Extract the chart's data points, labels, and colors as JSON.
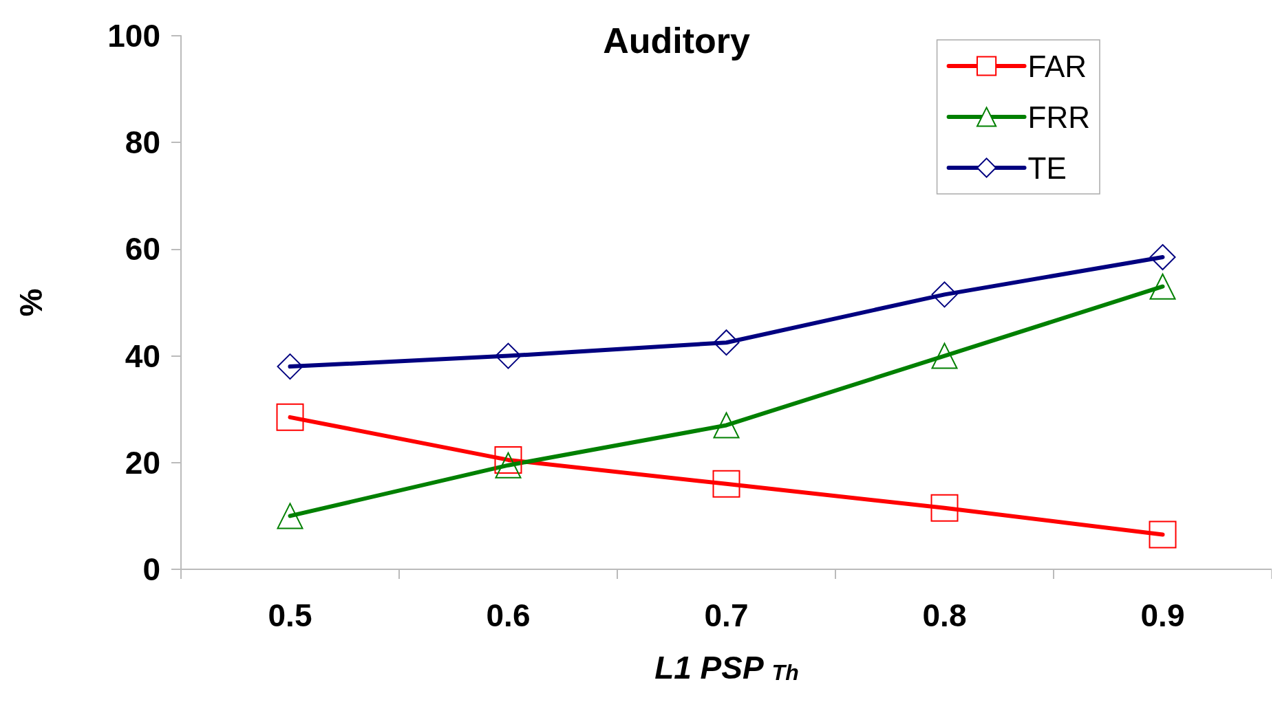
{
  "chart_data": {
    "type": "line",
    "title": "Auditory",
    "xlabel": "L1 PSP $_{Th}$",
    "ylabel": "%",
    "categories": [
      "0.5",
      "0.6",
      "0.7",
      "0.8",
      "0.9"
    ],
    "series": [
      {
        "name": "FAR",
        "color": "#ff0000",
        "marker": "square",
        "values": [
          28.5,
          20.5,
          16,
          11.5,
          6.5
        ]
      },
      {
        "name": "FRR",
        "color": "#008000",
        "marker": "triangle",
        "values": [
          10,
          19.5,
          27,
          40,
          53
        ]
      },
      {
        "name": "TE",
        "color": "#000080",
        "marker": "diamond",
        "values": [
          38,
          40,
          42.5,
          51.5,
          58.5
        ]
      }
    ],
    "ylim": [
      0,
      100
    ],
    "yticks": [
      0,
      20,
      40,
      60,
      80,
      100
    ],
    "grid": false,
    "legend": "top right",
    "line_style": "solid"
  }
}
